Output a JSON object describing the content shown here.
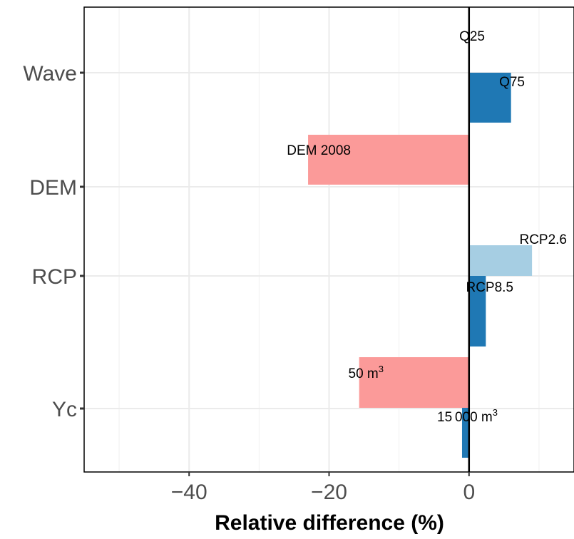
{
  "chart_data": {
    "type": "bar",
    "orientation": "horizontal",
    "title": "",
    "xlabel": "Relative difference (%)",
    "ylabel": "",
    "xlim": [
      -55,
      15
    ],
    "xticks": [
      -40,
      -20,
      0
    ],
    "xtick_labels": [
      "−40",
      "−20",
      "0"
    ],
    "categories": [
      "Wave",
      "DEM",
      "RCP",
      "Yc"
    ],
    "grid": true,
    "legend": "none",
    "colors": {
      "red": "#fb9a99",
      "dark_blue": "#1f78b4",
      "light_blue": "#a6cee3"
    },
    "bars": [
      {
        "category": "Wave",
        "label": "Q25",
        "value": 0,
        "color": "dark_blue"
      },
      {
        "category": "Wave",
        "label": "Q75",
        "value": 6,
        "color": "dark_blue"
      },
      {
        "category": "DEM",
        "label": "DEM 2008",
        "value": -23,
        "color": "red"
      },
      {
        "category": "RCP",
        "label": "RCP2.6",
        "value": 9,
        "color": "light_blue"
      },
      {
        "category": "RCP",
        "label": "RCP8.5",
        "value": 2.4,
        "color": "dark_blue"
      },
      {
        "category": "Yc",
        "label": "50 m",
        "label_sup": "3",
        "value": -15.7,
        "color": "red"
      },
      {
        "category": "Yc",
        "label": "15 000 m",
        "label_sup": "3",
        "value": -1,
        "color": "dark_blue"
      }
    ]
  }
}
